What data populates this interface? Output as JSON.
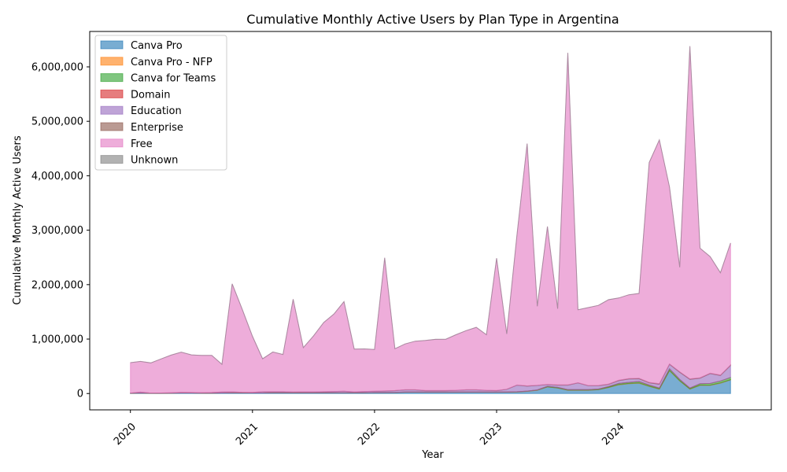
{
  "chart_data": {
    "type": "area",
    "stacked": true,
    "title": "Cumulative Monthly Active Users by Plan Type in Argentina",
    "xlabel": "Year",
    "ylabel": "Cumulative Monthly Active Users",
    "x_ticks": [
      "2020",
      "2021",
      "2022",
      "2023",
      "2024"
    ],
    "y_ticks": [
      "0",
      "1,000,000",
      "2,000,000",
      "3,000,000",
      "4,000,000",
      "5,000,000",
      "6,000,000"
    ],
    "ylim": [
      -300000,
      6650000
    ],
    "xlim": [
      "2019-09",
      "2025-04"
    ],
    "legend_position": "top-left",
    "grid": false,
    "x": [
      "2020-01",
      "2020-02",
      "2020-03",
      "2020-04",
      "2020-05",
      "2020-06",
      "2020-07",
      "2020-08",
      "2020-09",
      "2020-10",
      "2020-11",
      "2020-12",
      "2021-01",
      "2021-02",
      "2021-03",
      "2021-04",
      "2021-05",
      "2021-06",
      "2021-07",
      "2021-08",
      "2021-09",
      "2021-10",
      "2021-11",
      "2021-12",
      "2022-01",
      "2022-02",
      "2022-03",
      "2022-04",
      "2022-05",
      "2022-06",
      "2022-07",
      "2022-08",
      "2022-09",
      "2022-10",
      "2022-11",
      "2022-12",
      "2023-01",
      "2023-02",
      "2023-03",
      "2023-04",
      "2023-05",
      "2023-06",
      "2023-07",
      "2023-08",
      "2023-09",
      "2023-10",
      "2023-11",
      "2023-12",
      "2024-01",
      "2024-02",
      "2024-03",
      "2024-04",
      "2024-05",
      "2024-06",
      "2024-07",
      "2024-08",
      "2024-09",
      "2024-10",
      "2024-11",
      "2024-12"
    ],
    "series": [
      {
        "name": "Canva Pro",
        "color": "#1f77b4",
        "values": [
          5000,
          10000,
          5000,
          5000,
          8000,
          10000,
          10000,
          8000,
          8000,
          10000,
          12000,
          12000,
          10000,
          10000,
          15000,
          15000,
          15000,
          15000,
          15000,
          15000,
          15000,
          15000,
          15000,
          15000,
          18000,
          18000,
          20000,
          25000,
          25000,
          25000,
          25000,
          25000,
          25000,
          25000,
          25000,
          25000,
          25000,
          25000,
          30000,
          40000,
          60000,
          120000,
          100000,
          60000,
          60000,
          60000,
          70000,
          110000,
          160000,
          180000,
          190000,
          130000,
          80000,
          420000,
          230000,
          80000,
          150000,
          150000,
          190000,
          250000
        ]
      },
      {
        "name": "Canva Pro - NFP",
        "color": "#ff7f0e",
        "values": [
          500,
          500,
          500,
          500,
          500,
          500,
          500,
          500,
          500,
          500,
          500,
          500,
          500,
          500,
          500,
          500,
          500,
          500,
          500,
          500,
          500,
          500,
          500,
          500,
          1000,
          1000,
          1000,
          1000,
          1000,
          1000,
          1000,
          1000,
          1000,
          1000,
          1000,
          1000,
          1000,
          1000,
          1000,
          2000,
          2000,
          3000,
          3000,
          3000,
          3000,
          3000,
          3000,
          3000,
          5000,
          5000,
          5000,
          5000,
          5000,
          5000,
          5000,
          5000,
          5000,
          5000,
          5000,
          5000
        ]
      },
      {
        "name": "Canva for Teams",
        "color": "#2ca02c",
        "values": [
          500,
          500,
          500,
          500,
          500,
          500,
          500,
          500,
          500,
          500,
          500,
          500,
          500,
          500,
          500,
          500,
          500,
          500,
          500,
          500,
          500,
          500,
          500,
          500,
          1000,
          1000,
          1000,
          1000,
          1000,
          1000,
          1000,
          1000,
          1000,
          1000,
          1000,
          1000,
          1000,
          1000,
          2000,
          3000,
          5000,
          10000,
          10000,
          10000,
          10000,
          10000,
          10000,
          15000,
          20000,
          20000,
          25000,
          20000,
          15000,
          30000,
          25000,
          15000,
          25000,
          30000,
          35000,
          40000
        ]
      },
      {
        "name": "Domain",
        "color": "#d62728",
        "values": [
          200,
          200,
          200,
          200,
          200,
          200,
          200,
          200,
          200,
          200,
          200,
          200,
          200,
          200,
          200,
          200,
          200,
          200,
          200,
          200,
          200,
          200,
          200,
          200,
          300,
          300,
          300,
          300,
          300,
          300,
          300,
          300,
          300,
          300,
          300,
          300,
          300,
          300,
          300,
          500,
          500,
          500,
          500,
          500,
          500,
          500,
          500,
          500,
          1000,
          1000,
          1000,
          1000,
          1000,
          1000,
          1000,
          1000,
          1000,
          1000,
          1000,
          1000
        ]
      },
      {
        "name": "Education",
        "color": "#9467bd",
        "values": [
          2000,
          15000,
          2000,
          3000,
          5000,
          8000,
          7000,
          6000,
          8000,
          15000,
          15000,
          8000,
          8000,
          20000,
          15000,
          15000,
          10000,
          12000,
          12000,
          15000,
          20000,
          25000,
          12000,
          20000,
          20000,
          25000,
          30000,
          40000,
          40000,
          25000,
          25000,
          25000,
          30000,
          40000,
          40000,
          30000,
          25000,
          50000,
          120000,
          90000,
          80000,
          30000,
          40000,
          80000,
          120000,
          70000,
          60000,
          40000,
          50000,
          60000,
          50000,
          40000,
          70000,
          80000,
          130000,
          160000,
          100000,
          180000,
          100000,
          220000
        ]
      },
      {
        "name": "Enterprise",
        "color": "#8c564b",
        "values": [
          1000,
          1000,
          1000,
          1000,
          1500,
          1500,
          1500,
          1500,
          1500,
          2000,
          2000,
          2000,
          2000,
          2000,
          2000,
          2000,
          2000,
          2000,
          2000,
          2000,
          2000,
          2000,
          2000,
          2000,
          3000,
          3000,
          3000,
          3000,
          3000,
          3000,
          3000,
          3000,
          3000,
          3000,
          3000,
          3000,
          3000,
          3000,
          3000,
          5000,
          5000,
          5000,
          5000,
          5000,
          5000,
          5000,
          5000,
          5000,
          8000,
          8000,
          8000,
          8000,
          8000,
          8000,
          8000,
          8000,
          8000,
          8000,
          8000,
          8000
        ]
      },
      {
        "name": "Free",
        "color": "#e377c2",
        "values": [
          558000,
          563000,
          554000,
          625000,
          690000,
          740000,
          690000,
          683000,
          682000,
          508000,
          1985000,
          1520000,
          1030000,
          605000,
          730000,
          684000,
          1705000,
          812000,
          1030000,
          1270000,
          1420000,
          1645000,
          786000,
          782000,
          767000,
          2445000,
          767000,
          840000,
          891000,
          920000,
          940000,
          942000,
          1020000,
          1085000,
          1145000,
          1020000,
          2430000,
          1015000,
          2760000,
          4450000,
          1450000,
          2900000,
          1400000,
          6100000,
          1340000,
          1430000,
          1470000,
          1550000,
          1510000,
          1540000,
          1560000,
          4040000,
          4480000,
          3250000,
          1920000,
          6110000,
          2380000,
          2140000,
          1880000,
          2240000
        ]
      },
      {
        "name": "Unknown",
        "color": "#7f7f7f",
        "values": [
          100,
          100,
          100,
          100,
          100,
          100,
          100,
          100,
          100,
          100,
          100,
          100,
          100,
          100,
          100,
          100,
          100,
          100,
          100,
          100,
          100,
          100,
          100,
          100,
          100,
          100,
          100,
          100,
          100,
          100,
          100,
          100,
          100,
          100,
          100,
          100,
          100,
          100,
          100,
          100,
          100,
          100,
          100,
          100,
          100,
          100,
          100,
          100,
          100,
          100,
          100,
          100,
          100,
          100,
          100,
          100,
          100,
          100,
          100,
          100
        ]
      }
    ]
  }
}
